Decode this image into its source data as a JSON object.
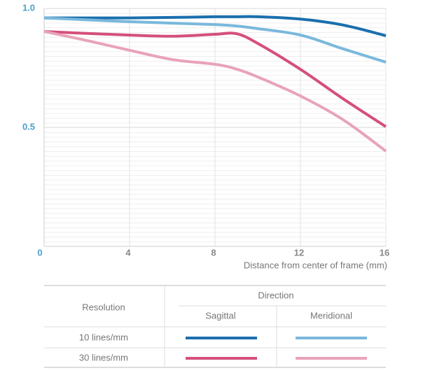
{
  "chart_data": {
    "type": "line",
    "x": [
      0,
      2,
      4,
      6,
      8,
      9,
      10,
      12,
      14,
      16
    ],
    "series": [
      {
        "color": "#1a6fae",
        "values": [
          0.96,
          0.96,
          0.96,
          0.962,
          0.965,
          0.965,
          0.965,
          0.955,
          0.93,
          0.885
        ]
      },
      {
        "color": "#7ab8dc",
        "values": [
          0.96,
          0.952,
          0.944,
          0.938,
          0.932,
          0.926,
          0.915,
          0.888,
          0.83,
          0.774
        ]
      },
      {
        "color": "#d4507a",
        "values": [
          0.903,
          0.895,
          0.888,
          0.883,
          0.891,
          0.894,
          0.853,
          0.744,
          0.62,
          0.503
        ]
      },
      {
        "color": "#e8a3b8",
        "values": [
          0.903,
          0.865,
          0.824,
          0.785,
          0.765,
          0.745,
          0.712,
          0.632,
          0.532,
          0.4
        ]
      }
    ],
    "x_label": "Distance from center of frame (mm)",
    "xlim": [
      0,
      16
    ],
    "xticks": [
      0,
      4,
      8,
      12,
      16
    ],
    "ylim": [
      0,
      1
    ],
    "yticks": [
      0.5,
      {
        "value": 1,
        "label": "1.0"
      }
    ],
    "grid": true,
    "legend_table": {
      "resolution": "Resolution",
      "direction": "Direction",
      "sagittal": "Sagittal",
      "meridional": "Meridional",
      "rows": [
        "10 lines/mm",
        "30 lines/mm"
      ]
    }
  }
}
